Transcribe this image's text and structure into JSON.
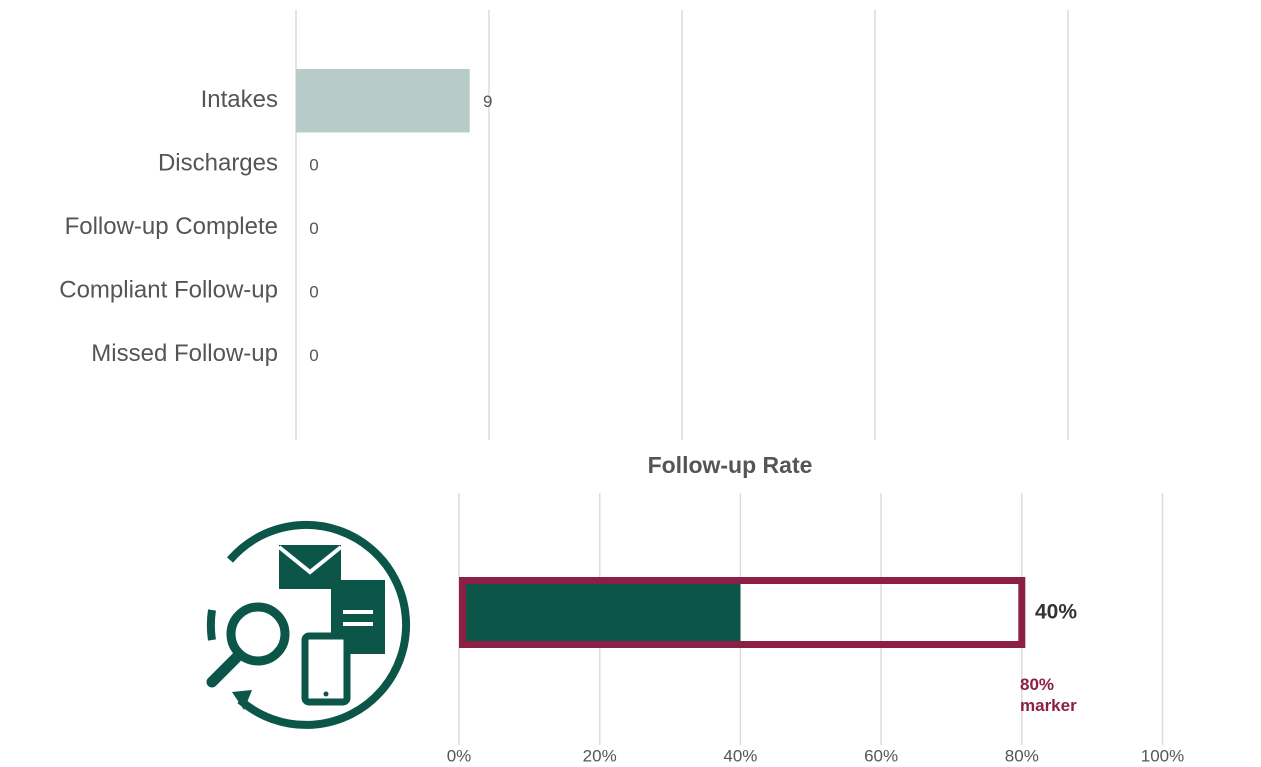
{
  "chart_data": [
    {
      "type": "bar",
      "orientation": "horizontal",
      "categories": [
        "Intakes",
        "Discharges",
        "Follow-up Complete",
        "Compliant Follow-up",
        "Missed Follow-up"
      ],
      "values": [
        9,
        0,
        0,
        0,
        0
      ],
      "color": "#b7ccc9",
      "xlim": [
        0,
        50
      ],
      "xticks": [
        0,
        10,
        20,
        30,
        40
      ],
      "grid": true
    },
    {
      "type": "bullet",
      "title": "Follow-up Rate",
      "values": [
        40
      ],
      "value_labels": [
        "40%"
      ],
      "color": "#0b5549",
      "target": {
        "value": 80,
        "label": "80% marker",
        "color": "#8b1f45"
      },
      "xlim": [
        0,
        114
      ],
      "xticks": [
        {
          "value": 0,
          "label": "0%"
        },
        {
          "value": 20,
          "label": "20%"
        },
        {
          "value": 40,
          "label": "40%"
        },
        {
          "value": 60,
          "label": "60%"
        },
        {
          "value": 80,
          "label": "80%"
        },
        {
          "value": 100,
          "label": "100%"
        }
      ],
      "grid": true
    }
  ]
}
